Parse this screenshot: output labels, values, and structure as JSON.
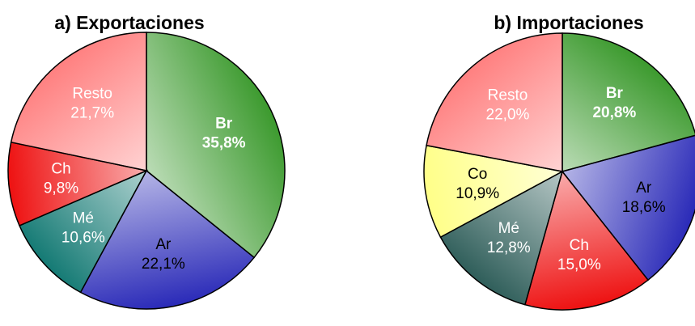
{
  "chart_data": [
    {
      "type": "pie",
      "title": "a) Exportaciones",
      "categories": [
        "Br",
        "Ar",
        "Mé",
        "Ch",
        "Resto"
      ],
      "values": [
        35.8,
        22.1,
        10.6,
        9.8,
        21.7
      ],
      "value_labels": [
        "35,8%",
        "22,1%",
        "10,6%",
        "9,8%",
        "21,7%"
      ],
      "colors": [
        "#3c9a2e",
        "#2a2ab8",
        "#147a74",
        "#ee1111",
        "#ff8080"
      ],
      "label_colors": [
        "#ffffff",
        "#000000",
        "#ffffff",
        "#ffffff",
        "#ffffff"
      ]
    },
    {
      "type": "pie",
      "title": "b) Importaciones",
      "categories": [
        "Br",
        "Ar",
        "Ch",
        "Mé",
        "Co",
        "Resto"
      ],
      "values": [
        20.8,
        18.6,
        15.0,
        12.8,
        10.9,
        22.0
      ],
      "value_labels": [
        "20,8%",
        "18,6%",
        "15,0%",
        "12,8%",
        "10,9%",
        "22,0%"
      ],
      "colors": [
        "#3c9a2e",
        "#2a2ab8",
        "#ee1111",
        "#2f5e5a",
        "#ffff88",
        "#ff8080"
      ],
      "label_colors": [
        "#ffffff",
        "#000000",
        "#ffffff",
        "#ffffff",
        "#000000",
        "#ffffff"
      ]
    }
  ]
}
